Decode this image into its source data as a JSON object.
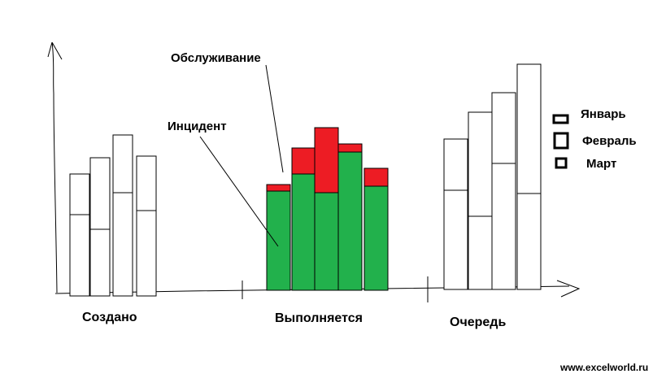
{
  "chart_data": {
    "type": "bar",
    "categories": [
      "Создано",
      "Выполняется",
      "Очередь"
    ],
    "legend": [
      "Январь",
      "Февраль",
      "Март"
    ],
    "groups": [
      {
        "category": "Создано",
        "bars": [
          [
            0,
            150
          ],
          [
            0,
            170
          ],
          [
            0,
            198
          ],
          [
            0,
            172
          ]
        ],
        "dividers": [
          100,
          82,
          127,
          105
        ]
      },
      {
        "category": "Выполняется",
        "bars": [
          [
            0,
            130
          ],
          [
            0,
            175
          ],
          [
            0,
            200
          ],
          [
            0,
            180
          ],
          [
            0,
            150
          ]
        ],
        "split": [
          122,
          143,
          120,
          170,
          128
        ]
      },
      {
        "category": "Очередь",
        "bars": [
          [
            0,
            185
          ],
          [
            0,
            218
          ],
          [
            0,
            242
          ],
          [
            0,
            277
          ]
        ],
        "dividers": [
          122,
          90,
          155,
          118
        ]
      }
    ],
    "series": [
      {
        "name": "Инцидент",
        "color": "#22b14c"
      },
      {
        "name": "Обслуживание",
        "color": "#ed1c24"
      }
    ],
    "annotations": [
      "Обслуживание",
      "Инцидент"
    ]
  },
  "watermark": "www.excelworld.ru"
}
